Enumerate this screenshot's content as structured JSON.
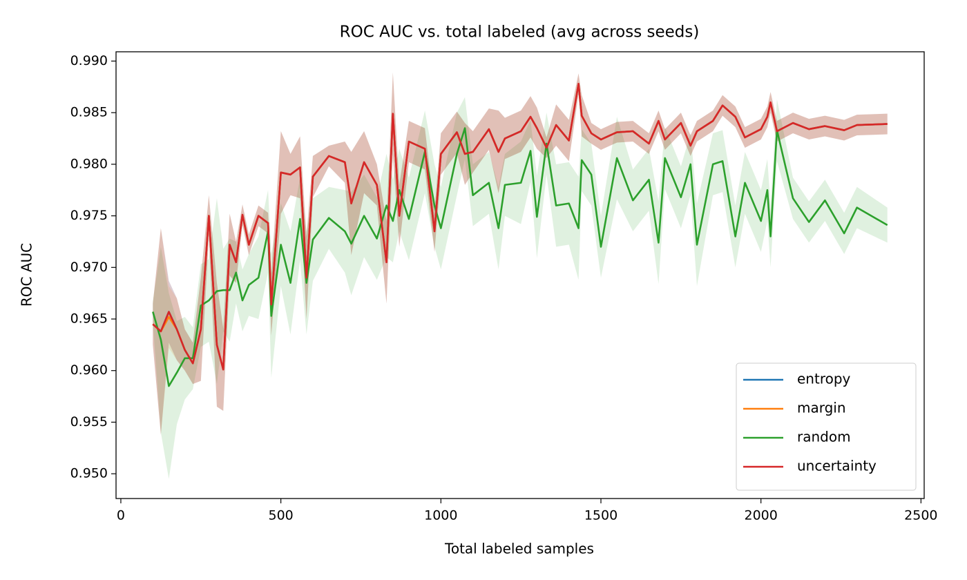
{
  "chart_data": {
    "type": "line",
    "title": "ROC AUC vs. total labeled (avg across seeds)",
    "x_label": "Total labeled samples",
    "y_label": "ROC AUC",
    "legend": "lower right",
    "xlim": [
      -15,
      2510
    ],
    "ylim": [
      0.9476,
      0.9909
    ],
    "xticks": [
      0,
      500,
      1000,
      1500,
      2000,
      2500
    ],
    "yticks": [
      {
        "value": 0.95,
        "label": "0.950"
      },
      0.955,
      {
        "value": 0.96,
        "label": "0.960"
      },
      0.965,
      {
        "value": 0.97,
        "label": "0.970"
      },
      0.975,
      {
        "value": 0.98,
        "label": "0.980"
      },
      0.985,
      {
        "value": 0.99,
        "label": "0.990"
      }
    ],
    "x": [
      100,
      125,
      150,
      175,
      200,
      225,
      250,
      275,
      300,
      320,
      340,
      360,
      380,
      400,
      430,
      460,
      470,
      500,
      530,
      560,
      580,
      600,
      650,
      700,
      720,
      760,
      800,
      830,
      850,
      870,
      900,
      950,
      980,
      1000,
      1050,
      1075,
      1100,
      1150,
      1180,
      1200,
      1250,
      1280,
      1300,
      1330,
      1360,
      1400,
      1430,
      1440,
      1470,
      1500,
      1550,
      1600,
      1650,
      1680,
      1700,
      1750,
      1780,
      1800,
      1850,
      1880,
      1920,
      1950,
      2000,
      2020,
      2030,
      2050,
      2100,
      2150,
      2200,
      2260,
      2300,
      2395
    ],
    "series": [
      {
        "name": "entropy",
        "color": "#1f77b4",
        "values": [
          0.9645,
          0.9638,
          0.9657,
          0.964,
          0.962,
          0.9607,
          0.964,
          0.975,
          0.9625,
          0.9601,
          0.9722,
          0.9705,
          0.9751,
          0.9722,
          0.975,
          0.9743,
          0.9664,
          0.9792,
          0.979,
          0.9797,
          0.969,
          0.9788,
          0.9808,
          0.9802,
          0.9762,
          0.9802,
          0.978,
          0.9705,
          0.9849,
          0.975,
          0.9822,
          0.9815,
          0.9735,
          0.981,
          0.9831,
          0.981,
          0.9812,
          0.9834,
          0.9812,
          0.9825,
          0.9832,
          0.9846,
          0.9835,
          0.9816,
          0.9838,
          0.9823,
          0.9878,
          0.9847,
          0.983,
          0.9824,
          0.9831,
          0.9832,
          0.982,
          0.9842,
          0.9824,
          0.984,
          0.9818,
          0.9832,
          0.9842,
          0.9857,
          0.9846,
          0.9826,
          0.9834,
          0.9846,
          0.986,
          0.9832,
          0.984,
          0.9834,
          0.9837,
          0.9833,
          0.9838,
          0.9839
        ],
        "spread": [
          0.002,
          0.01,
          0.003,
          0.003,
          0.002,
          0.002,
          0.005,
          0.002,
          0.006,
          0.004,
          0.003,
          0.002,
          0.001,
          0.001,
          0.001,
          0.001,
          0.003,
          0.004,
          0.002,
          0.003,
          0.004,
          0.002,
          0.001,
          0.002,
          0.005,
          0.003,
          0.002,
          0.004,
          0.004,
          0.003,
          0.002,
          0.002,
          0.002,
          0.002,
          0.002,
          0.003,
          0.002,
          0.002,
          0.004,
          0.002,
          0.002,
          0.002,
          0.002,
          0.001,
          0.002,
          0.002,
          0.001,
          0.002,
          0.001,
          0.001,
          0.001,
          0.001,
          0.001,
          0.001,
          0.001,
          0.001,
          0.001,
          0.001,
          0.001,
          0.001,
          0.001,
          0.001,
          0.001,
          0.001,
          0.001,
          0.001,
          0.001,
          0.001,
          0.001,
          0.001,
          0.001,
          0.001
        ]
      },
      {
        "name": "margin",
        "color": "#ff7f0e",
        "values": [
          0.9645,
          0.9638,
          0.9652,
          0.964,
          0.962,
          0.9607,
          0.964,
          0.975,
          0.9625,
          0.9601,
          0.9722,
          0.9705,
          0.9751,
          0.9722,
          0.975,
          0.9743,
          0.9664,
          0.9792,
          0.979,
          0.9797,
          0.969,
          0.9788,
          0.9808,
          0.9802,
          0.9762,
          0.9802,
          0.978,
          0.9705,
          0.9849,
          0.975,
          0.9822,
          0.9815,
          0.9735,
          0.981,
          0.9831,
          0.981,
          0.9812,
          0.9834,
          0.9812,
          0.9825,
          0.9832,
          0.9846,
          0.9835,
          0.9816,
          0.9838,
          0.9823,
          0.9878,
          0.9847,
          0.983,
          0.9824,
          0.9831,
          0.9832,
          0.982,
          0.9842,
          0.9824,
          0.984,
          0.9818,
          0.9832,
          0.9842,
          0.9857,
          0.9846,
          0.9826,
          0.9834,
          0.9846,
          0.986,
          0.9832,
          0.984,
          0.9834,
          0.9837,
          0.9833,
          0.9838,
          0.9839
        ],
        "spread": [
          0.002,
          0.01,
          0.003,
          0.003,
          0.002,
          0.002,
          0.005,
          0.002,
          0.006,
          0.004,
          0.003,
          0.002,
          0.001,
          0.001,
          0.001,
          0.001,
          0.003,
          0.004,
          0.002,
          0.003,
          0.004,
          0.002,
          0.001,
          0.002,
          0.005,
          0.003,
          0.002,
          0.004,
          0.004,
          0.003,
          0.002,
          0.002,
          0.002,
          0.002,
          0.002,
          0.003,
          0.002,
          0.002,
          0.004,
          0.002,
          0.002,
          0.002,
          0.002,
          0.001,
          0.002,
          0.002,
          0.001,
          0.002,
          0.001,
          0.001,
          0.001,
          0.001,
          0.001,
          0.001,
          0.001,
          0.001,
          0.001,
          0.001,
          0.001,
          0.001,
          0.001,
          0.001,
          0.001,
          0.001,
          0.001,
          0.001,
          0.001,
          0.001,
          0.001,
          0.001,
          0.001,
          0.001
        ]
      },
      {
        "name": "random",
        "color": "#2ca02c",
        "values": [
          0.9657,
          0.963,
          0.9585,
          0.9598,
          0.9612,
          0.9612,
          0.9663,
          0.9668,
          0.9677,
          0.9678,
          0.9678,
          0.9695,
          0.9668,
          0.9683,
          0.969,
          0.9735,
          0.9653,
          0.9722,
          0.9685,
          0.9747,
          0.9685,
          0.9727,
          0.9748,
          0.9735,
          0.9723,
          0.975,
          0.9728,
          0.976,
          0.9745,
          0.9775,
          0.9747,
          0.9812,
          0.976,
          0.9738,
          0.981,
          0.9835,
          0.977,
          0.9782,
          0.9738,
          0.978,
          0.9782,
          0.9813,
          0.9749,
          0.982,
          0.976,
          0.9762,
          0.9738,
          0.9804,
          0.979,
          0.972,
          0.9806,
          0.9765,
          0.9785,
          0.9724,
          0.9806,
          0.9768,
          0.98,
          0.9722,
          0.98,
          0.9803,
          0.973,
          0.9782,
          0.9745,
          0.9775,
          0.973,
          0.9833,
          0.9767,
          0.9744,
          0.9765,
          0.9733,
          0.9758,
          0.9741
        ],
        "spread": [
          0.001,
          0.009,
          0.009,
          0.005,
          0.004,
          0.003,
          0.004,
          0.004,
          0.009,
          0.004,
          0.005,
          0.003,
          0.003,
          0.003,
          0.004,
          0.004,
          0.006,
          0.004,
          0.005,
          0.004,
          0.005,
          0.004,
          0.003,
          0.004,
          0.005,
          0.004,
          0.004,
          0.005,
          0.004,
          0.004,
          0.004,
          0.004,
          0.004,
          0.004,
          0.004,
          0.003,
          0.003,
          0.003,
          0.004,
          0.003,
          0.004,
          0.003,
          0.004,
          0.003,
          0.004,
          0.004,
          0.005,
          0.003,
          0.003,
          0.003,
          0.004,
          0.003,
          0.003,
          0.004,
          0.003,
          0.003,
          0.003,
          0.004,
          0.003,
          0.003,
          0.003,
          0.003,
          0.003,
          0.003,
          0.003,
          0.003,
          0.002,
          0.002,
          0.002,
          0.002,
          0.002,
          0.0017
        ]
      },
      {
        "name": "uncertainty",
        "color": "#d62728",
        "values": [
          0.9645,
          0.9638,
          0.9657,
          0.964,
          0.962,
          0.9607,
          0.964,
          0.975,
          0.9625,
          0.9601,
          0.9722,
          0.9705,
          0.9751,
          0.9722,
          0.975,
          0.9743,
          0.9664,
          0.9792,
          0.979,
          0.9797,
          0.969,
          0.9788,
          0.9808,
          0.9802,
          0.9762,
          0.9802,
          0.978,
          0.9705,
          0.9849,
          0.975,
          0.9822,
          0.9815,
          0.9735,
          0.981,
          0.9831,
          0.981,
          0.9812,
          0.9834,
          0.9812,
          0.9825,
          0.9832,
          0.9846,
          0.9835,
          0.9816,
          0.9838,
          0.9823,
          0.9878,
          0.9847,
          0.983,
          0.9824,
          0.9831,
          0.9832,
          0.982,
          0.9842,
          0.9824,
          0.984,
          0.9818,
          0.9832,
          0.9842,
          0.9857,
          0.9846,
          0.9826,
          0.9834,
          0.9846,
          0.986,
          0.9832,
          0.984,
          0.9834,
          0.9837,
          0.9833,
          0.9838,
          0.9839
        ],
        "spread": [
          0.002,
          0.01,
          0.003,
          0.003,
          0.002,
          0.002,
          0.005,
          0.002,
          0.006,
          0.004,
          0.003,
          0.002,
          0.001,
          0.001,
          0.001,
          0.001,
          0.003,
          0.004,
          0.002,
          0.003,
          0.004,
          0.002,
          0.001,
          0.002,
          0.005,
          0.003,
          0.002,
          0.004,
          0.004,
          0.003,
          0.002,
          0.002,
          0.002,
          0.002,
          0.002,
          0.003,
          0.002,
          0.002,
          0.004,
          0.002,
          0.002,
          0.002,
          0.002,
          0.001,
          0.002,
          0.002,
          0.001,
          0.002,
          0.001,
          0.001,
          0.001,
          0.001,
          0.001,
          0.001,
          0.001,
          0.001,
          0.001,
          0.001,
          0.001,
          0.001,
          0.001,
          0.001,
          0.001,
          0.001,
          0.001,
          0.001,
          0.001,
          0.001,
          0.001,
          0.001,
          0.001,
          0.001
        ]
      }
    ]
  }
}
